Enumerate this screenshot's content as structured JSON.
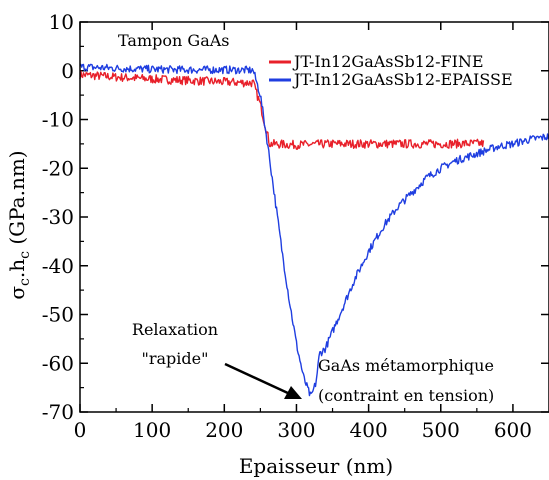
{
  "chart_data": {
    "type": "line",
    "title": "",
    "xlabel": "Epaisseur (nm)",
    "ylabel_parts": {
      "sigma": "σ",
      "sub_c1": "c",
      "dot": ".h",
      "sub_c2": "c",
      "unit": " (GPa.nm)"
    },
    "xlim": [
      0,
      650
    ],
    "ylim": [
      -70,
      10
    ],
    "xticks": [
      0,
      100,
      200,
      300,
      400,
      500,
      600
    ],
    "yticks": [
      10,
      0,
      -10,
      -20,
      -30,
      -40,
      -50,
      -60,
      -70
    ],
    "legend_position": "top-right",
    "series": [
      {
        "name": "JT-In12GaAsSb12-FINE",
        "color": "#e8202a",
        "points": [
          [
            0,
            -0.8
          ],
          [
            50,
            -1.3
          ],
          [
            100,
            -1.7
          ],
          [
            150,
            -2.0
          ],
          [
            200,
            -2.3
          ],
          [
            240,
            -2.5
          ],
          [
            250,
            -7
          ],
          [
            258,
            -12
          ],
          [
            263,
            -15
          ],
          [
            300,
            -15.2
          ],
          [
            350,
            -15
          ],
          [
            400,
            -15
          ],
          [
            450,
            -15
          ],
          [
            500,
            -15
          ],
          [
            560,
            -14.9
          ]
        ]
      },
      {
        "name": "JT-In12GaAsSb12-EPAISSE",
        "color": "#1f3ee0",
        "points": [
          [
            0,
            0.8
          ],
          [
            50,
            0.5
          ],
          [
            100,
            0.3
          ],
          [
            150,
            0.2
          ],
          [
            200,
            0.2
          ],
          [
            240,
            0.1
          ],
          [
            250,
            -5
          ],
          [
            260,
            -15
          ],
          [
            270,
            -26
          ],
          [
            280,
            -37
          ],
          [
            290,
            -47
          ],
          [
            300,
            -56
          ],
          [
            310,
            -63
          ],
          [
            320,
            -67
          ],
          [
            327,
            -64
          ],
          [
            332,
            -58
          ],
          [
            340,
            -57
          ],
          [
            360,
            -50
          ],
          [
            380,
            -43
          ],
          [
            400,
            -37
          ],
          [
            420,
            -32
          ],
          [
            440,
            -28
          ],
          [
            460,
            -25
          ],
          [
            480,
            -22
          ],
          [
            500,
            -20
          ],
          [
            520,
            -18.5
          ],
          [
            540,
            -17.5
          ],
          [
            560,
            -16.5
          ],
          [
            580,
            -15.5
          ],
          [
            600,
            -15
          ],
          [
            620,
            -14.2
          ],
          [
            640,
            -13.7
          ],
          [
            650,
            -13.5
          ]
        ]
      }
    ],
    "annotations": {
      "tampon": "Tampon GaAs",
      "relaxation_line1": "Relaxation",
      "relaxation_line2": "\"rapide\"",
      "metamorphique_line1": "GaAs métamorphique",
      "metamorphique_line2": "(contraint en tension)"
    }
  }
}
